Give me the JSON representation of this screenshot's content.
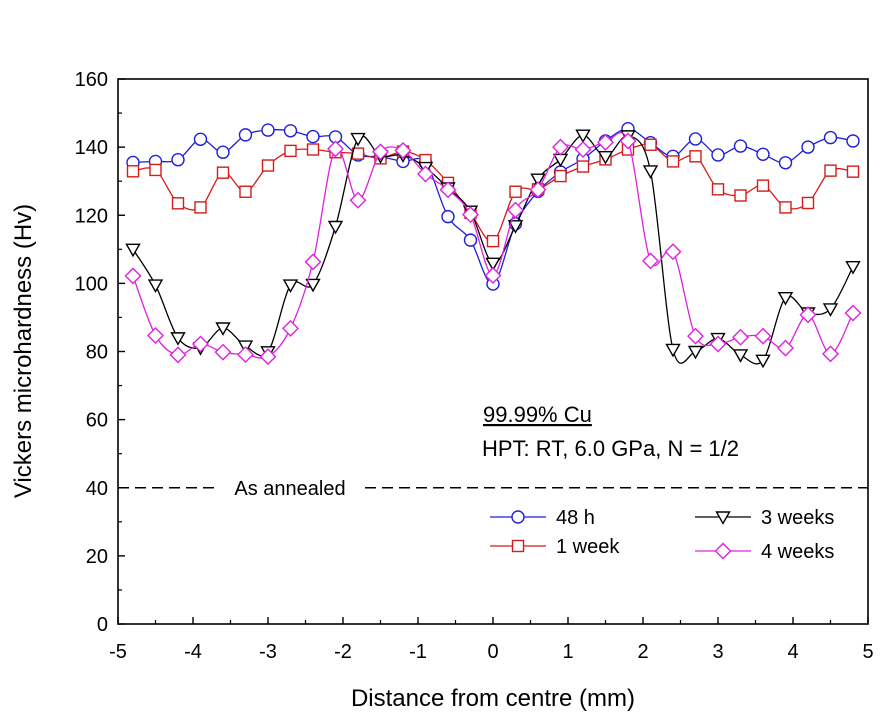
{
  "chart_data": {
    "type": "line",
    "xlabel": "Distance from centre (mm)",
    "ylabel": "Vickers microhardness (Hv)",
    "xlim": [
      -5,
      5
    ],
    "ylim": [
      0,
      160
    ],
    "xticks": [
      -5,
      -4,
      -3,
      -2,
      -1,
      0,
      1,
      2,
      3,
      4,
      5
    ],
    "yticks": [
      0,
      20,
      40,
      60,
      80,
      100,
      120,
      140,
      160
    ],
    "grid": false,
    "legend_position": "bottom-right",
    "annotation": {
      "line1": "99.99% Cu",
      "line2": "HPT: RT, 6.0 GPa, N = 1/2"
    },
    "reference_line": {
      "label": "As annealed",
      "y": 40,
      "style": "dashed",
      "color": "#000000"
    },
    "series": [
      {
        "name": "48 h",
        "color": "#1f1fdc",
        "marker": "circle",
        "points": [
          [
            -4.8,
            135.5
          ],
          [
            -4.5,
            135.8
          ],
          [
            -4.2,
            136.3
          ],
          [
            -3.9,
            142.3
          ],
          [
            -3.6,
            138.5
          ],
          [
            -3.3,
            143.6
          ],
          [
            -3.0,
            145.0
          ],
          [
            -2.7,
            144.8
          ],
          [
            -2.4,
            143.1
          ],
          [
            -2.1,
            143.0
          ],
          [
            -1.8,
            137.7
          ],
          [
            -1.5,
            137.2
          ],
          [
            -1.2,
            135.8
          ],
          [
            -0.9,
            135.5
          ],
          [
            -0.6,
            119.6
          ],
          [
            -0.3,
            112.7
          ],
          [
            0.0,
            99.8
          ],
          [
            0.3,
            117.5
          ],
          [
            0.6,
            127.0
          ],
          [
            0.9,
            132.7
          ],
          [
            1.2,
            136.5
          ],
          [
            1.5,
            141.8
          ],
          [
            1.8,
            145.4
          ],
          [
            2.1,
            141.3
          ],
          [
            2.4,
            137.3
          ],
          [
            2.7,
            142.4
          ],
          [
            3.0,
            137.7
          ],
          [
            3.3,
            140.3
          ],
          [
            3.6,
            137.9
          ],
          [
            3.9,
            135.4
          ],
          [
            4.2,
            140.0
          ],
          [
            4.5,
            142.8
          ],
          [
            4.8,
            141.8
          ]
        ]
      },
      {
        "name": "1 week",
        "color": "#d41c1c",
        "marker": "square",
        "points": [
          [
            -4.8,
            132.9
          ],
          [
            -4.5,
            133.3
          ],
          [
            -4.2,
            123.5
          ],
          [
            -3.9,
            122.3
          ],
          [
            -3.6,
            132.5
          ],
          [
            -3.3,
            126.9
          ],
          [
            -3.0,
            134.6
          ],
          [
            -2.7,
            138.9
          ],
          [
            -2.4,
            139.3
          ],
          [
            -2.1,
            138.5
          ],
          [
            -1.8,
            138.1
          ],
          [
            -1.5,
            136.7
          ],
          [
            -1.2,
            138.7
          ],
          [
            -0.9,
            136.2
          ],
          [
            -0.6,
            129.5
          ],
          [
            -0.3,
            120.7
          ],
          [
            0.0,
            112.4
          ],
          [
            0.3,
            126.9
          ],
          [
            0.6,
            127.6
          ],
          [
            0.9,
            131.5
          ],
          [
            1.2,
            134.3
          ],
          [
            1.5,
            136.4
          ],
          [
            1.8,
            139.3
          ],
          [
            2.1,
            140.7
          ],
          [
            2.4,
            135.8
          ],
          [
            2.7,
            137.3
          ],
          [
            3.0,
            127.6
          ],
          [
            3.3,
            125.8
          ],
          [
            3.6,
            128.7
          ],
          [
            3.9,
            122.3
          ],
          [
            4.2,
            123.6
          ],
          [
            4.5,
            133.1
          ],
          [
            4.8,
            132.8
          ]
        ]
      },
      {
        "name": "3 weeks",
        "color": "#000000",
        "marker": "triangle-down",
        "points": [
          [
            -4.8,
            110.0
          ],
          [
            -4.5,
            99.5
          ],
          [
            -4.2,
            84.0
          ],
          [
            -3.9,
            81.1
          ],
          [
            -3.6,
            86.9
          ],
          [
            -3.3,
            81.6
          ],
          [
            -3.0,
            79.9
          ],
          [
            -2.7,
            99.5
          ],
          [
            -2.4,
            99.7
          ],
          [
            -2.1,
            116.7
          ],
          [
            -1.8,
            142.5
          ],
          [
            -1.5,
            137.4
          ],
          [
            -1.2,
            137.7
          ],
          [
            -0.9,
            134.0
          ],
          [
            -0.6,
            128.0
          ],
          [
            -0.3,
            121.2
          ],
          [
            0.0,
            105.9
          ],
          [
            0.3,
            116.9
          ],
          [
            0.6,
            130.6
          ],
          [
            0.9,
            136.4
          ],
          [
            1.2,
            143.5
          ],
          [
            1.5,
            137.2
          ],
          [
            1.8,
            143.3
          ],
          [
            2.1,
            133.0
          ],
          [
            2.4,
            80.6
          ],
          [
            2.7,
            80.0
          ],
          [
            3.0,
            83.8
          ],
          [
            3.3,
            79.0
          ],
          [
            3.6,
            77.4
          ],
          [
            3.9,
            95.8
          ],
          [
            4.2,
            91.3
          ],
          [
            4.5,
            92.5
          ],
          [
            4.8,
            104.9
          ]
        ]
      },
      {
        "name": "4 weeks",
        "color": "#e020e0",
        "marker": "diamond",
        "points": [
          [
            -4.8,
            102.2
          ],
          [
            -4.5,
            84.7
          ],
          [
            -4.2,
            79.0
          ],
          [
            -3.9,
            82.2
          ],
          [
            -3.6,
            79.8
          ],
          [
            -3.3,
            79.1
          ],
          [
            -3.0,
            78.5
          ],
          [
            -2.7,
            86.8
          ],
          [
            -2.4,
            106.3
          ],
          [
            -2.1,
            139.5
          ],
          [
            -1.8,
            124.4
          ],
          [
            -1.5,
            138.6
          ],
          [
            -1.2,
            139.0
          ],
          [
            -0.9,
            132.1
          ],
          [
            -0.6,
            127.5
          ],
          [
            -0.3,
            120.2
          ],
          [
            0.0,
            102.3
          ],
          [
            0.3,
            121.5
          ],
          [
            0.6,
            127.5
          ],
          [
            0.9,
            140.0
          ],
          [
            1.2,
            139.3
          ],
          [
            1.5,
            141.4
          ],
          [
            1.8,
            141.8
          ],
          [
            2.1,
            106.6
          ],
          [
            2.4,
            109.3
          ],
          [
            2.7,
            84.5
          ],
          [
            3.0,
            82.2
          ],
          [
            3.3,
            84.2
          ],
          [
            3.6,
            84.5
          ],
          [
            3.9,
            81.0
          ],
          [
            4.2,
            90.8
          ],
          [
            4.5,
            79.3
          ],
          [
            4.8,
            91.3
          ]
        ]
      }
    ]
  }
}
